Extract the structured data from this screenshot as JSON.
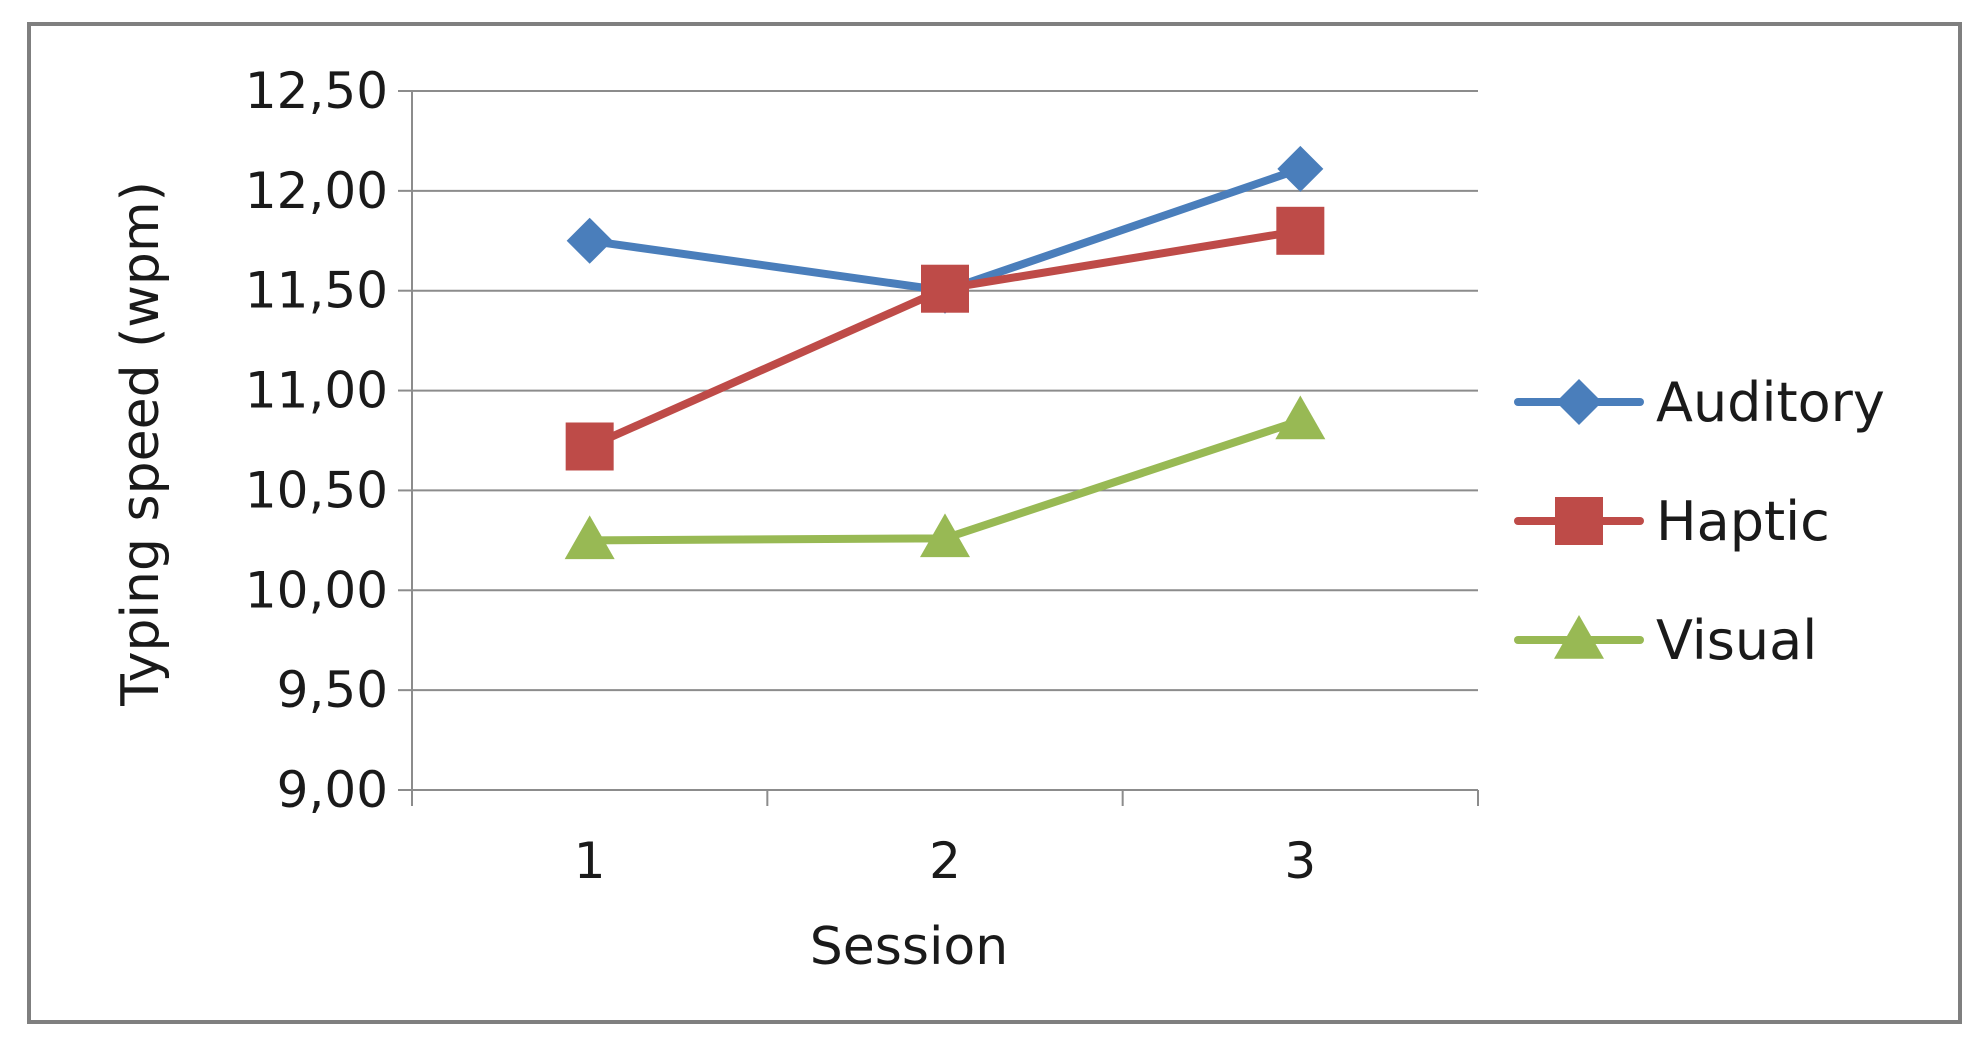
{
  "chart_data": {
    "type": "line",
    "title": "",
    "xlabel": "Session",
    "ylabel": "Typing speed (wpm)",
    "categories": [
      "1",
      "2",
      "3"
    ],
    "ylim": [
      9.0,
      12.5
    ],
    "yticks": [
      9.0,
      9.5,
      10.0,
      10.5,
      11.0,
      11.5,
      12.0,
      12.5
    ],
    "ytick_labels": [
      "9,00",
      "9,50",
      "10,00",
      "10,50",
      "11,00",
      "11,50",
      "12,00",
      "12,50"
    ],
    "grid": true,
    "legend_position": "right",
    "series": [
      {
        "name": "Auditory",
        "values": [
          11.75,
          11.5,
          12.11
        ],
        "color": "#4a7ebb",
        "marker": "diamond"
      },
      {
        "name": "Haptic",
        "values": [
          10.72,
          11.51,
          11.8
        ],
        "color": "#be4b48",
        "marker": "square"
      },
      {
        "name": "Visual",
        "values": [
          10.25,
          10.26,
          10.85
        ],
        "color": "#98b954",
        "marker": "triangle"
      }
    ]
  }
}
